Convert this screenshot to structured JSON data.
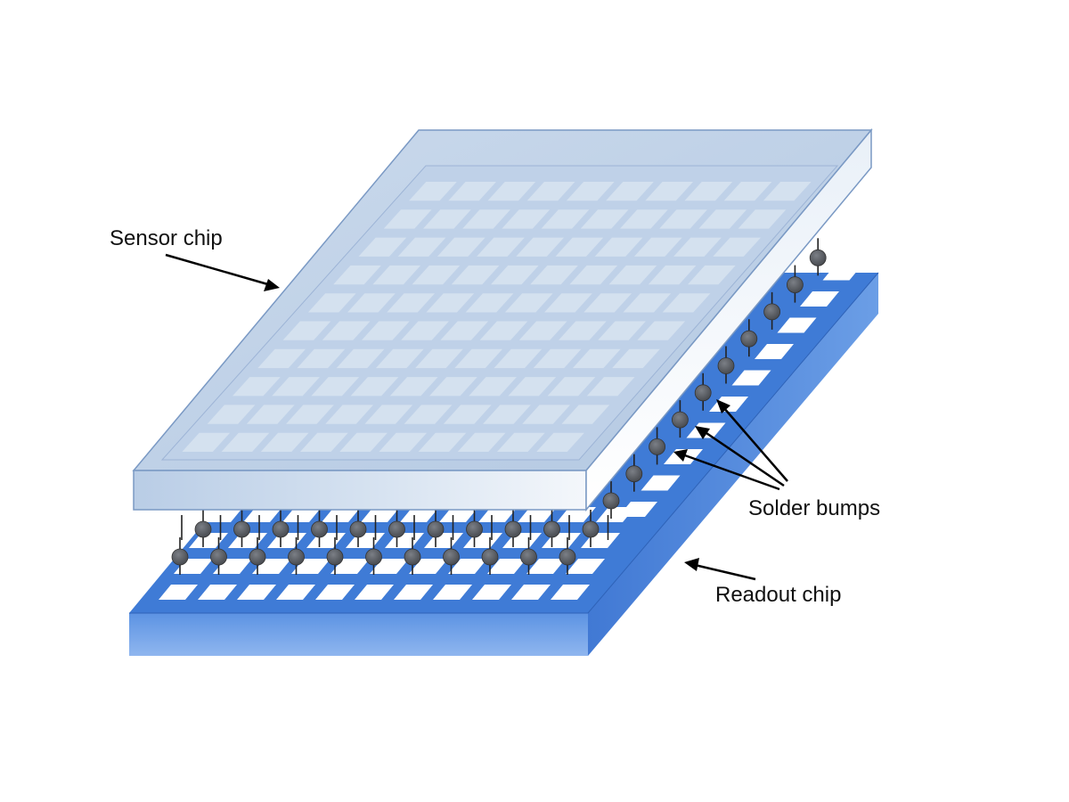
{
  "labels": {
    "sensor_chip": "Sensor chip",
    "solder_bumps": "Solder bumps",
    "readout_chip": "Readout chip"
  },
  "grid": {
    "sensor_rows": 10,
    "sensor_cols": 10,
    "readout_rows": 4,
    "readout_cols": 11,
    "side_bump_count": 10
  },
  "colors": {
    "sensor_fill": "#c6d6ea",
    "sensor_edge": "#7a99c4",
    "readout_top": "#3f7bd6",
    "readout_front": "#5d93e2",
    "readout_right": "#4a82d9",
    "pad": "#ffffff",
    "bump": "#5a5d63",
    "stem": "#222222",
    "arrow": "#000000"
  }
}
